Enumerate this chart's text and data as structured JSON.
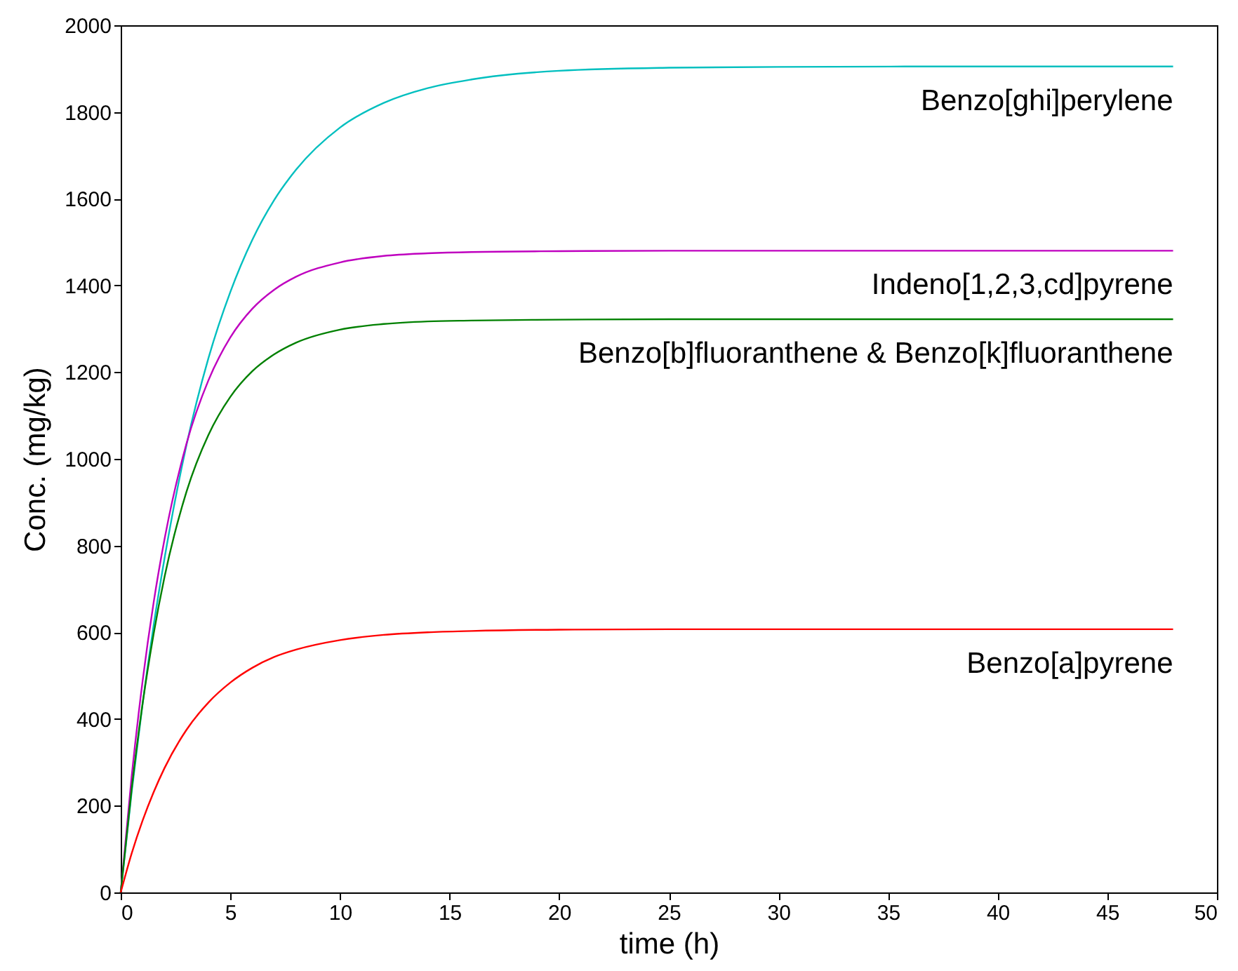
{
  "chart_data": {
    "type": "line",
    "xlabel": "time (h)",
    "ylabel": "Conc. (mg/kg)",
    "x": [
      0,
      0.5,
      1,
      1.5,
      2,
      3,
      4,
      5,
      6,
      7,
      8,
      10,
      12,
      14,
      16,
      20,
      25,
      30,
      40,
      48
    ],
    "series": [
      {
        "name": "Benzo[ghi]perylene",
        "color": "#00bfbf",
        "values": [
          0,
          232,
          436,
          615,
          771,
          1032,
          1232,
          1385,
          1505,
          1597,
          1667,
          1764,
          1821,
          1855,
          1875,
          1895,
          1902,
          1904,
          1905,
          1905
        ]
      },
      {
        "name": "Indeno[1,2,3,cd]pyrene",
        "color": "#bf00bf",
        "values": [
          0,
          268,
          488,
          668,
          815,
          1035,
          1181,
          1280,
          1346,
          1390,
          1420,
          1453,
          1468,
          1474,
          1477,
          1479,
          1480,
          1480,
          1480,
          1480
        ]
      },
      {
        "name": "Benzo[b]fluoranthene & Benzo[k]fluoranthene",
        "color": "#008000",
        "values": [
          0,
          239,
          436,
          596,
          728,
          924,
          1055,
          1143,
          1202,
          1241,
          1268,
          1298,
          1311,
          1317,
          1319,
          1321,
          1322,
          1322,
          1322,
          1322
        ]
      },
      {
        "name": "Benzo[a]pyrene",
        "color": "#ff0000",
        "values": [
          0,
          90,
          166,
          231,
          287,
          375,
          438,
          484,
          518,
          543,
          560,
          582,
          594,
          600,
          603,
          606,
          607,
          607,
          607,
          607
        ]
      }
    ],
    "xlim": [
      0,
      50
    ],
    "xticks": [
      0,
      5,
      10,
      15,
      20,
      25,
      30,
      35,
      40,
      45,
      50
    ],
    "ylim": [
      0,
      2000
    ],
    "yticks": [
      0,
      200,
      400,
      600,
      800,
      1000,
      1200,
      1400,
      1600,
      1800,
      2000
    ],
    "grid": false
  }
}
